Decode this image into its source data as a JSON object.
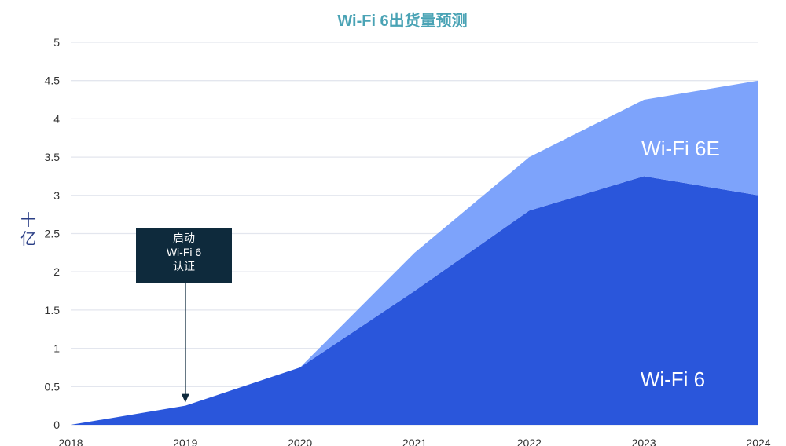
{
  "chart_data": {
    "type": "area",
    "stacked": true,
    "title": "Wi-Fi 6出货量预测",
    "ylabel": "十\n亿",
    "xlabel": "",
    "x": [
      "2018",
      "2019",
      "2020",
      "2021",
      "2022",
      "2023",
      "2024"
    ],
    "ylim": [
      0,
      5
    ],
    "yticks": [
      "0",
      "0.5",
      "1",
      "1.5",
      "2",
      "2.5",
      "3",
      "3.5",
      "4",
      "4.5",
      "5"
    ],
    "grid": true,
    "series": [
      {
        "name": "Wi-Fi 6",
        "values": [
          0,
          0.25,
          0.75,
          1.75,
          2.8,
          3.25,
          3.0
        ],
        "color": "#2a56db"
      },
      {
        "name": "Wi-Fi 6E",
        "values": [
          0,
          0,
          0,
          0.5,
          0.7,
          1.0,
          1.5
        ],
        "color": "#7da3fb"
      }
    ],
    "annotations": [
      {
        "lines": [
          "启动",
          "Wi-Fi 6",
          "认证"
        ],
        "x": "2019",
        "y": 0.25
      }
    ],
    "colors": {
      "title": "#4aa3b5",
      "grid": "#e3e6ee",
      "annotation_box": "#0e2a3c"
    }
  }
}
